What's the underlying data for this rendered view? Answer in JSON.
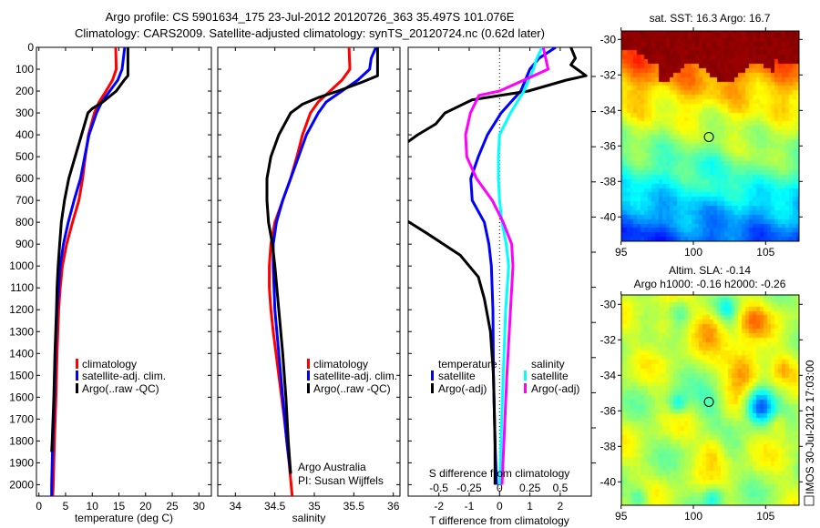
{
  "title": {
    "line1": "Argo profile: CS 5901634_175 23-Jul-2012 20120726_363 35.497S 101.076E",
    "line2": "Climatology: CARS2009. Satellite-adjusted climatology: synTS_20120724.nc (0.62d later)"
  },
  "credit": {
    "line1": "Argo Australia",
    "line2": "PI: Susan Wijffels"
  },
  "side_label": "IMOS 30-Jul-2012 17:03:00",
  "chart_data": [
    {
      "id": "temperature",
      "type": "line",
      "xlabel": "temperature (deg C)",
      "ylabel": "",
      "xlim": [
        -2,
        32
      ],
      "ylim": [
        2052,
        0
      ],
      "xticks": [
        0,
        5,
        10,
        15,
        20,
        25,
        30
      ],
      "yticks": [
        0,
        100,
        200,
        300,
        400,
        500,
        600,
        700,
        800,
        900,
        1000,
        1100,
        1200,
        1300,
        1400,
        1500,
        1600,
        1700,
        1800,
        1900,
        2000
      ],
      "legend": [
        "climatology",
        "satellite-adj. clim.",
        "Argo(..raw -QC)"
      ],
      "series": [
        {
          "name": "climatology",
          "color": "#ff0000",
          "points": [
            [
              0,
              14.4
            ],
            [
              100,
              14.5
            ],
            [
              150,
              13.8
            ],
            [
              200,
              12.6
            ],
            [
              250,
              11.3
            ],
            [
              300,
              10.4
            ],
            [
              400,
              9.3
            ],
            [
              500,
              8.7
            ],
            [
              600,
              8.2
            ],
            [
              700,
              7.5
            ],
            [
              800,
              6.3
            ],
            [
              900,
              5.2
            ],
            [
              1000,
              4.4
            ],
            [
              1100,
              4.0
            ],
            [
              1200,
              3.7
            ],
            [
              1400,
              3.4
            ],
            [
              1600,
              3.2
            ],
            [
              1800,
              2.9
            ],
            [
              2000,
              2.7
            ],
            [
              2052,
              2.6
            ]
          ]
        },
        {
          "name": "satellite-adj. clim.",
          "color": "#0000ff",
          "points": [
            [
              0,
              16.1
            ],
            [
              100,
              15.6
            ],
            [
              150,
              14.8
            ],
            [
              200,
              13.3
            ],
            [
              250,
              11.8
            ],
            [
              300,
              10.8
            ],
            [
              400,
              9.4
            ],
            [
              500,
              8.6
            ],
            [
              600,
              7.8
            ],
            [
              700,
              6.6
            ],
            [
              800,
              5.5
            ],
            [
              900,
              4.6
            ],
            [
              1000,
              4.0
            ],
            [
              1100,
              3.7
            ],
            [
              1200,
              3.4
            ],
            [
              1400,
              3.1
            ],
            [
              1600,
              2.9
            ],
            [
              1800,
              2.6
            ],
            [
              2000,
              2.4
            ],
            [
              2052,
              2.4
            ]
          ]
        },
        {
          "name": "Argo(..raw -QC)",
          "color": "#000000",
          "points": [
            [
              0,
              16.7
            ],
            [
              130,
              16.7
            ],
            [
              150,
              16.0
            ],
            [
              200,
              14.5
            ],
            [
              250,
              12.0
            ],
            [
              280,
              10.0
            ],
            [
              300,
              9.2
            ],
            [
              400,
              8.0
            ],
            [
              500,
              6.8
            ],
            [
              600,
              5.6
            ],
            [
              700,
              4.8
            ],
            [
              800,
              4.2
            ],
            [
              900,
              3.9
            ],
            [
              1000,
              3.6
            ],
            [
              1100,
              3.4
            ],
            [
              1200,
              3.3
            ],
            [
              1400,
              3.0
            ],
            [
              1600,
              2.8
            ],
            [
              1800,
              2.5
            ],
            [
              1850,
              2.4
            ]
          ]
        }
      ]
    },
    {
      "id": "salinity",
      "type": "line",
      "xlabel": "salinity",
      "xlim": [
        33.78,
        36.1
      ],
      "ylim": [
        2052,
        0
      ],
      "xticks": [
        34,
        34.5,
        35,
        35.5,
        36
      ],
      "legend": [
        "climatology",
        "satellite-adj. clim.",
        "Argo(..raw -QC)"
      ],
      "series": [
        {
          "name": "climatology",
          "color": "#ff0000",
          "points": [
            [
              0,
              35.44
            ],
            [
              100,
              35.45
            ],
            [
              150,
              35.35
            ],
            [
              200,
              35.2
            ],
            [
              250,
              35.05
            ],
            [
              300,
              34.95
            ],
            [
              400,
              34.85
            ],
            [
              500,
              34.78
            ],
            [
              600,
              34.7
            ],
            [
              700,
              34.6
            ],
            [
              800,
              34.5
            ],
            [
              900,
              34.45
            ],
            [
              1000,
              34.43
            ],
            [
              1100,
              34.43
            ],
            [
              1200,
              34.45
            ],
            [
              1300,
              34.48
            ],
            [
              1500,
              34.55
            ],
            [
              1700,
              34.62
            ],
            [
              1900,
              34.68
            ],
            [
              2052,
              34.72
            ]
          ]
        },
        {
          "name": "satellite-adj. clim.",
          "color": "#0000ff",
          "points": [
            [
              0,
              35.78
            ],
            [
              50,
              35.72
            ],
            [
              100,
              35.7
            ],
            [
              150,
              35.55
            ],
            [
              200,
              35.35
            ],
            [
              250,
              35.15
            ],
            [
              300,
              35.05
            ],
            [
              400,
              34.9
            ],
            [
              500,
              34.8
            ],
            [
              600,
              34.7
            ],
            [
              700,
              34.6
            ],
            [
              800,
              34.52
            ],
            [
              900,
              34.48
            ],
            [
              1000,
              34.48
            ],
            [
              1100,
              34.49
            ],
            [
              1200,
              34.5
            ],
            [
              1400,
              34.55
            ],
            [
              1600,
              34.6
            ],
            [
              1800,
              34.65
            ],
            [
              1950,
              34.7
            ]
          ]
        },
        {
          "name": "Argo(..raw -QC)",
          "color": "#000000",
          "points": [
            [
              0,
              35.8
            ],
            [
              130,
              35.8
            ],
            [
              160,
              35.6
            ],
            [
              200,
              35.3
            ],
            [
              230,
              35.05
            ],
            [
              260,
              34.85
            ],
            [
              300,
              34.7
            ],
            [
              400,
              34.55
            ],
            [
              500,
              34.45
            ],
            [
              600,
              34.4
            ],
            [
              700,
              34.4
            ],
            [
              800,
              34.42
            ],
            [
              900,
              34.47
            ],
            [
              1000,
              34.5
            ],
            [
              1200,
              34.55
            ],
            [
              1400,
              34.6
            ],
            [
              1600,
              34.64
            ],
            [
              1800,
              34.67
            ],
            [
              1950,
              34.7
            ]
          ]
        }
      ]
    },
    {
      "id": "differences",
      "type": "line",
      "xlabel": "T difference from climatology",
      "xlabel2": "S difference from climatology",
      "xlim": [
        -3,
        3
      ],
      "xlim2": [
        -0.75,
        0.75
      ],
      "ylim": [
        2052,
        0
      ],
      "xticks": [
        -2,
        -1,
        0,
        1,
        2
      ],
      "xticks2": [
        -0.5,
        -0.25,
        0,
        0.25,
        0.5
      ],
      "legend_headers": [
        "temperature",
        "salinity"
      ],
      "legend": [
        "satellite",
        "Argo(-adj)",
        "satellite",
        "Argo(-adj)"
      ],
      "zero_line": 0,
      "series": [
        {
          "name": "temperature satellite",
          "axis": "T",
          "color": "#0000ff",
          "points": [
            [
              0,
              1.85
            ],
            [
              50,
              1.3
            ],
            [
              100,
              1.0
            ],
            [
              200,
              0.7
            ],
            [
              300,
              0.05
            ],
            [
              400,
              -0.4
            ],
            [
              500,
              -0.7
            ],
            [
              600,
              -0.95
            ],
            [
              700,
              -0.9
            ],
            [
              800,
              -0.5
            ],
            [
              900,
              -0.35
            ],
            [
              1000,
              -0.27
            ],
            [
              1200,
              -0.22
            ],
            [
              1500,
              -0.2
            ],
            [
              1800,
              -0.15
            ],
            [
              2000,
              -0.1
            ]
          ]
        },
        {
          "name": "temperature Argo(-adj)",
          "axis": "T",
          "color": "#000000",
          "points": [
            [
              0,
              2.35
            ],
            [
              50,
              2.5
            ],
            [
              80,
              2.35
            ],
            [
              130,
              2.85
            ],
            [
              150,
              2.2
            ],
            [
              200,
              0.95
            ],
            [
              240,
              -0.9
            ],
            [
              300,
              -1.8
            ],
            [
              350,
              -2.1
            ],
            [
              400,
              -2.7
            ],
            [
              450,
              -3.2
            ],
            [
              780,
              -3.2
            ],
            [
              850,
              -2.4
            ],
            [
              950,
              -1.3
            ],
            [
              1050,
              -0.7
            ],
            [
              1150,
              -0.5
            ],
            [
              1300,
              -0.3
            ],
            [
              1500,
              -0.2
            ],
            [
              1800,
              -0.15
            ],
            [
              2000,
              -0.15
            ]
          ]
        },
        {
          "name": "salinity satellite",
          "axis": "S",
          "color": "#00ffff",
          "points": [
            [
              0,
              0.35
            ],
            [
              60,
              0.3
            ],
            [
              100,
              0.28
            ],
            [
              200,
              0.2
            ],
            [
              300,
              0.09
            ],
            [
              400,
              0.0
            ],
            [
              500,
              -0.01
            ],
            [
              600,
              -0.01
            ],
            [
              700,
              0.0
            ],
            [
              800,
              0.02
            ],
            [
              900,
              0.055
            ],
            [
              1000,
              0.075
            ],
            [
              1200,
              0.05
            ],
            [
              1500,
              0.03
            ],
            [
              2000,
              0.0
            ]
          ]
        },
        {
          "name": "salinity Argo(-adj)",
          "axis": "S",
          "color": "#ff00ff",
          "points": [
            [
              0,
              0.36
            ],
            [
              100,
              0.4
            ],
            [
              130,
              0.28
            ],
            [
              200,
              0.0
            ],
            [
              220,
              -0.17
            ],
            [
              300,
              -0.24
            ],
            [
              400,
              -0.28
            ],
            [
              500,
              -0.27
            ],
            [
              600,
              -0.19
            ],
            [
              700,
              -0.06
            ],
            [
              800,
              0.03
            ],
            [
              900,
              0.1
            ],
            [
              1000,
              0.11
            ],
            [
              1200,
              0.09
            ],
            [
              1500,
              0.06
            ],
            [
              2000,
              0.02
            ]
          ]
        }
      ]
    },
    {
      "id": "sst-map",
      "type": "heatmap",
      "title": "sat. SST: 16.3 Argo: 16.7",
      "xticks": [
        95,
        100,
        105
      ],
      "yticks": [
        -30,
        -32,
        -34,
        -36,
        -38,
        -40
      ],
      "marker": {
        "lon": 101.076,
        "lat": -35.497
      }
    },
    {
      "id": "sla-map",
      "type": "heatmap",
      "title": "Altim. SLA: -0.14",
      "subtitle": "Argo h1000: -0.16 h2000: -0.26",
      "xticks": [
        95,
        100,
        105
      ],
      "yticks": [
        -30,
        -32,
        -34,
        -36,
        -38,
        -40
      ],
      "marker": {
        "lon": 101.076,
        "lat": -35.497
      }
    }
  ]
}
